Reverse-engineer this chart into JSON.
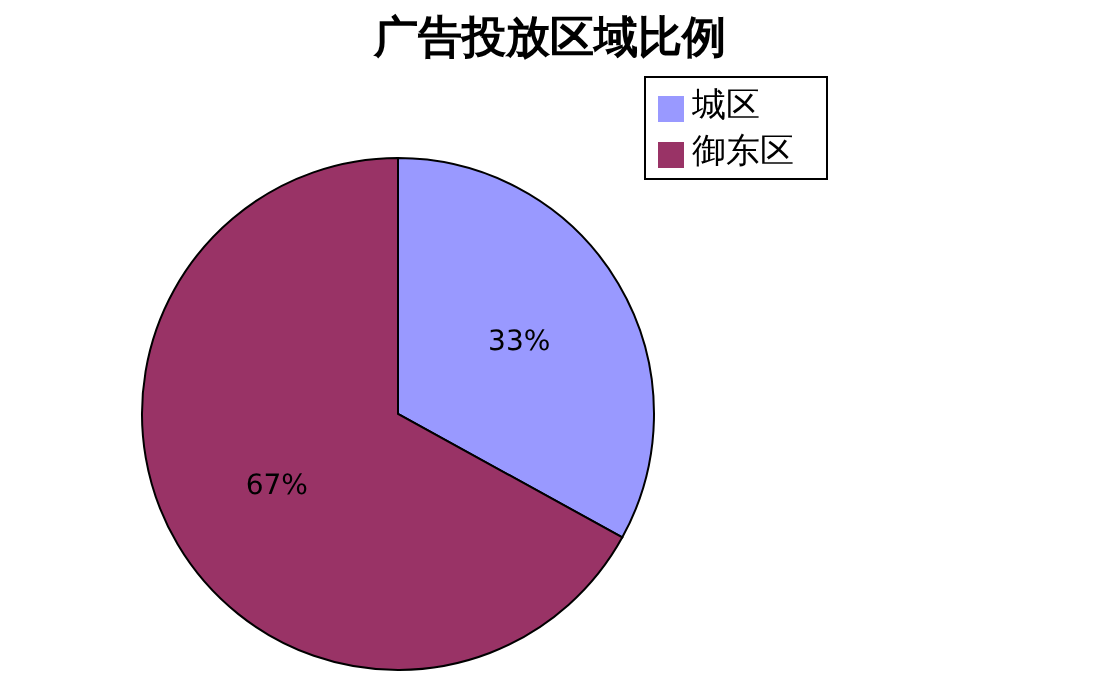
{
  "chart_data": {
    "type": "pie",
    "title": "广告投放区域比例",
    "categories": [
      "城区",
      "御东区"
    ],
    "values": [
      33,
      67
    ],
    "colors": [
      "#9999ff",
      "#993366"
    ],
    "value_labels": [
      "33%",
      "67%"
    ],
    "legend": "top right"
  }
}
